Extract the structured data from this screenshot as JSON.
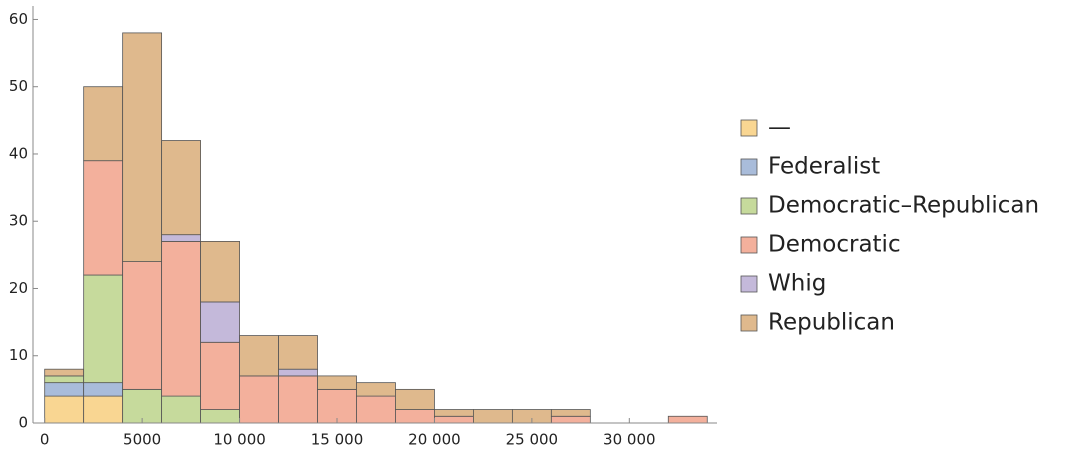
{
  "chart_data": {
    "type": "histogram",
    "bins": [
      0,
      2000,
      4000,
      6000,
      8000,
      10000,
      12000,
      14000,
      16000,
      18000,
      20000,
      22000,
      24000,
      26000,
      28000,
      30000,
      32000,
      34000
    ],
    "series": [
      {
        "name": "—",
        "color": "#f9d692",
        "values": [
          4,
          4,
          0,
          0,
          0,
          0,
          0,
          0,
          0,
          0,
          0,
          0,
          0,
          0,
          0,
          0,
          0
        ]
      },
      {
        "name": "Federalist",
        "color": "#a9bcda",
        "values": [
          2,
          2,
          0,
          0,
          0,
          0,
          0,
          0,
          0,
          0,
          0,
          0,
          0,
          0,
          0,
          0,
          0
        ]
      },
      {
        "name": "Democratic–Republican",
        "color": "#c6da9c",
        "values": [
          1,
          16,
          5,
          4,
          2,
          0,
          0,
          0,
          0,
          0,
          0,
          0,
          0,
          0,
          0,
          0,
          0
        ]
      },
      {
        "name": "Democratic",
        "color": "#f3b09c",
        "values": [
          0,
          17,
          19,
          23,
          10,
          7,
          7,
          5,
          4,
          2,
          1,
          0,
          0,
          1,
          0,
          0,
          1
        ]
      },
      {
        "name": "Whig",
        "color": "#c4b9da",
        "values": [
          0,
          0,
          0,
          1,
          6,
          0,
          1,
          0,
          0,
          0,
          0,
          0,
          0,
          0,
          0,
          0,
          0
        ]
      },
      {
        "name": "Republican",
        "color": "#dfb98d",
        "values": [
          1,
          11,
          34,
          14,
          9,
          6,
          5,
          2,
          2,
          3,
          1,
          2,
          2,
          1,
          0,
          0,
          0
        ]
      }
    ],
    "xlim": [
      -600,
      34500
    ],
    "xticks": [
      0,
      5000,
      {
        "value": 10000,
        "label": "10 000"
      },
      {
        "value": 15000,
        "label": "15 000"
      },
      {
        "value": 20000,
        "label": "20 000"
      },
      {
        "value": 25000,
        "label": "25 000"
      },
      {
        "value": 30000,
        "label": "30 000"
      }
    ],
    "ylim": [
      0,
      62
    ],
    "yticks": [
      0,
      10,
      20,
      30,
      40,
      50,
      60
    ]
  }
}
